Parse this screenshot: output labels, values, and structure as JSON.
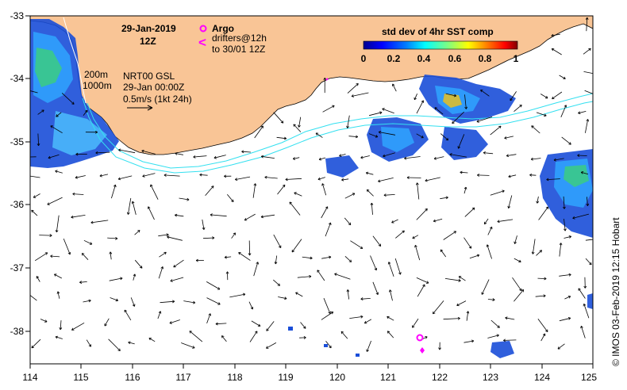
{
  "map": {
    "date_title": "29-Jan-2019",
    "time_title": "12Z",
    "argo_label": "Argo",
    "drifters_label": "drifters@12h",
    "drifters_range": "to 30/01 12Z",
    "depth_200": "200m",
    "depth_1000": "1000m",
    "product_line1": "NRT00 GSL",
    "product_line2": "29-Jan 00:00Z",
    "product_line3": "0.5m/s (1kt 24h)",
    "colorbar_title": "std dev of 4hr SST comp",
    "colorbar_ticks": [
      "0",
      "0.2",
      "0.4",
      "0.6",
      "0.8",
      "1"
    ],
    "credit": "©  IMOS 03-Feb-2019 12:15 Hobart",
    "x_ticks": [
      "114",
      "115",
      "116",
      "117",
      "118",
      "119",
      "120",
      "121",
      "122",
      "123",
      "124",
      "125"
    ],
    "y_ticks": [
      "-33",
      "-34",
      "-35",
      "-36",
      "-37",
      "-38"
    ],
    "colors": {
      "land": "#f9c596",
      "ocean": "#ffffff",
      "isobath": "#33e0f0",
      "argo": "#ff00ff",
      "vector": "#000000",
      "colorbar": [
        "#00008f",
        "#0000ff",
        "#0080ff",
        "#00ffff",
        "#80ff80",
        "#ffff00",
        "#ff8000",
        "#ff0000",
        "#800000"
      ]
    }
  }
}
